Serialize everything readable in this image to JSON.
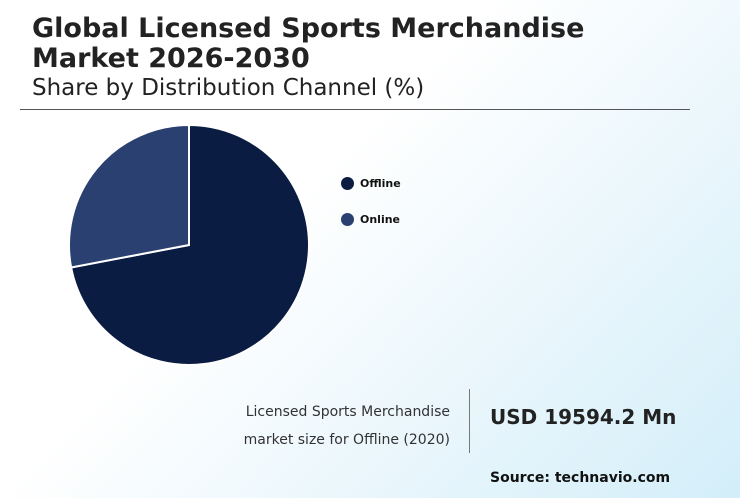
{
  "header": {
    "title": "Global Licensed Sports Merchandise Market 2026-2030",
    "subtitle": "Share by Distribution Channel (%)"
  },
  "chart_data": {
    "type": "pie",
    "title": "Share by Distribution Channel (%)",
    "categories": [
      "Offline",
      "Online"
    ],
    "values": [
      72,
      28
    ],
    "colors": [
      "#0a1c42",
      "#2a4070"
    ],
    "start_angle": "12 o'clock, clockwise",
    "legend_position": "right"
  },
  "stat": {
    "label_line1": "Licensed Sports Merchandise",
    "label_line2": "market size for Offline (2020)",
    "value": "USD 19594.2 Mn"
  },
  "footer": {
    "source": "Source: technavio.com"
  }
}
